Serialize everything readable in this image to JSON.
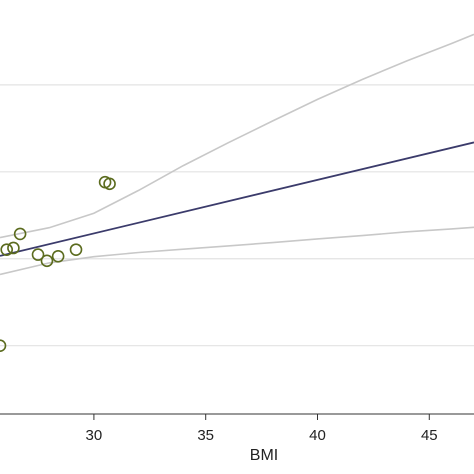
{
  "chart_data": {
    "type": "scatter",
    "title": "",
    "xlabel": "BMI",
    "ylabel": "",
    "xlim": [
      25.8,
      47.0
    ],
    "ylim": [
      0.0,
      1.0
    ],
    "x_ticks": [
      30,
      35,
      40,
      45
    ],
    "x_tick_labels": [
      "30",
      "35",
      "40",
      "45"
    ],
    "y_gridlines": [
      0.165,
      0.375,
      0.585,
      0.795
    ],
    "grid": true,
    "legend": "none",
    "colors": {
      "points": "#5b6b1e",
      "fit_line": "#3b3b6b",
      "ci_band": "#c8c8c8",
      "grid": "#e3e3e3",
      "axis": "#333333"
    },
    "series": [
      {
        "kind": "points",
        "values": [
          {
            "x": 25.8,
            "y": 0.165
          },
          {
            "x": 26.1,
            "y": 0.397
          },
          {
            "x": 26.4,
            "y": 0.401
          },
          {
            "x": 26.7,
            "y": 0.435
          },
          {
            "x": 27.5,
            "y": 0.385
          },
          {
            "x": 27.9,
            "y": 0.37
          },
          {
            "x": 28.4,
            "y": 0.381
          },
          {
            "x": 29.2,
            "y": 0.397
          },
          {
            "x": 30.5,
            "y": 0.56
          },
          {
            "x": 30.7,
            "y": 0.556
          }
        ]
      },
      {
        "kind": "fit-line",
        "values": [
          {
            "x": 25.8,
            "y": 0.382
          },
          {
            "x": 47.0,
            "y": 0.656
          }
        ]
      },
      {
        "kind": "ci-upper",
        "values": [
          {
            "x": 25.8,
            "y": 0.426
          },
          {
            "x": 28.0,
            "y": 0.45
          },
          {
            "x": 30.0,
            "y": 0.485
          },
          {
            "x": 32.0,
            "y": 0.54
          },
          {
            "x": 34.0,
            "y": 0.6
          },
          {
            "x": 36.0,
            "y": 0.655
          },
          {
            "x": 38.0,
            "y": 0.708
          },
          {
            "x": 40.0,
            "y": 0.76
          },
          {
            "x": 42.0,
            "y": 0.808
          },
          {
            "x": 44.0,
            "y": 0.853
          },
          {
            "x": 46.0,
            "y": 0.895
          },
          {
            "x": 47.0,
            "y": 0.917
          }
        ]
      },
      {
        "kind": "ci-lower",
        "values": [
          {
            "x": 25.8,
            "y": 0.337
          },
          {
            "x": 28.0,
            "y": 0.365
          },
          {
            "x": 30.0,
            "y": 0.38
          },
          {
            "x": 32.0,
            "y": 0.39
          },
          {
            "x": 34.0,
            "y": 0.398
          },
          {
            "x": 36.0,
            "y": 0.406
          },
          {
            "x": 38.0,
            "y": 0.414
          },
          {
            "x": 40.0,
            "y": 0.423
          },
          {
            "x": 42.0,
            "y": 0.431
          },
          {
            "x": 44.0,
            "y": 0.44
          },
          {
            "x": 46.0,
            "y": 0.447
          },
          {
            "x": 47.0,
            "y": 0.451
          }
        ]
      }
    ]
  }
}
